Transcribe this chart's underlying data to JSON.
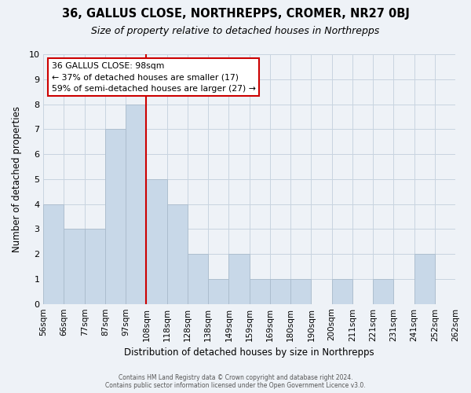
{
  "title": "36, GALLUS CLOSE, NORTHREPPS, CROMER, NR27 0BJ",
  "subtitle": "Size of property relative to detached houses in Northrepps",
  "xlabel": "Distribution of detached houses by size in Northrepps",
  "ylabel": "Number of detached properties",
  "footer_line1": "Contains HM Land Registry data © Crown copyright and database right 2024.",
  "footer_line2": "Contains public sector information licensed under the Open Government Licence v3.0.",
  "tick_labels": [
    "56sqm",
    "66sqm",
    "77sqm",
    "87sqm",
    "97sqm",
    "108sqm",
    "118sqm",
    "128sqm",
    "138sqm",
    "149sqm",
    "159sqm",
    "169sqm",
    "180sqm",
    "190sqm",
    "200sqm",
    "211sqm",
    "221sqm",
    "231sqm",
    "241sqm",
    "252sqm",
    "262sqm"
  ],
  "bar_heights": [
    4,
    3,
    3,
    7,
    8,
    5,
    4,
    2,
    1,
    2,
    1,
    1,
    1,
    0,
    1,
    0,
    1,
    0,
    2,
    0
  ],
  "bar_color": "#c8d8e8",
  "bar_edge_color": "#aabbcc",
  "red_line_x": 4.5,
  "ylim": [
    0,
    10
  ],
  "yticks": [
    0,
    1,
    2,
    3,
    4,
    5,
    6,
    7,
    8,
    9,
    10
  ],
  "annotation_title": "36 GALLUS CLOSE: 98sqm",
  "annotation_line1": "← 37% of detached houses are smaller (17)",
  "annotation_line2": "59% of semi-detached houses are larger (27) →",
  "annotation_box_color": "#ffffff",
  "annotation_box_edge": "#cc0000",
  "grid_color": "#c8d4e0",
  "background_color": "#eef2f7"
}
